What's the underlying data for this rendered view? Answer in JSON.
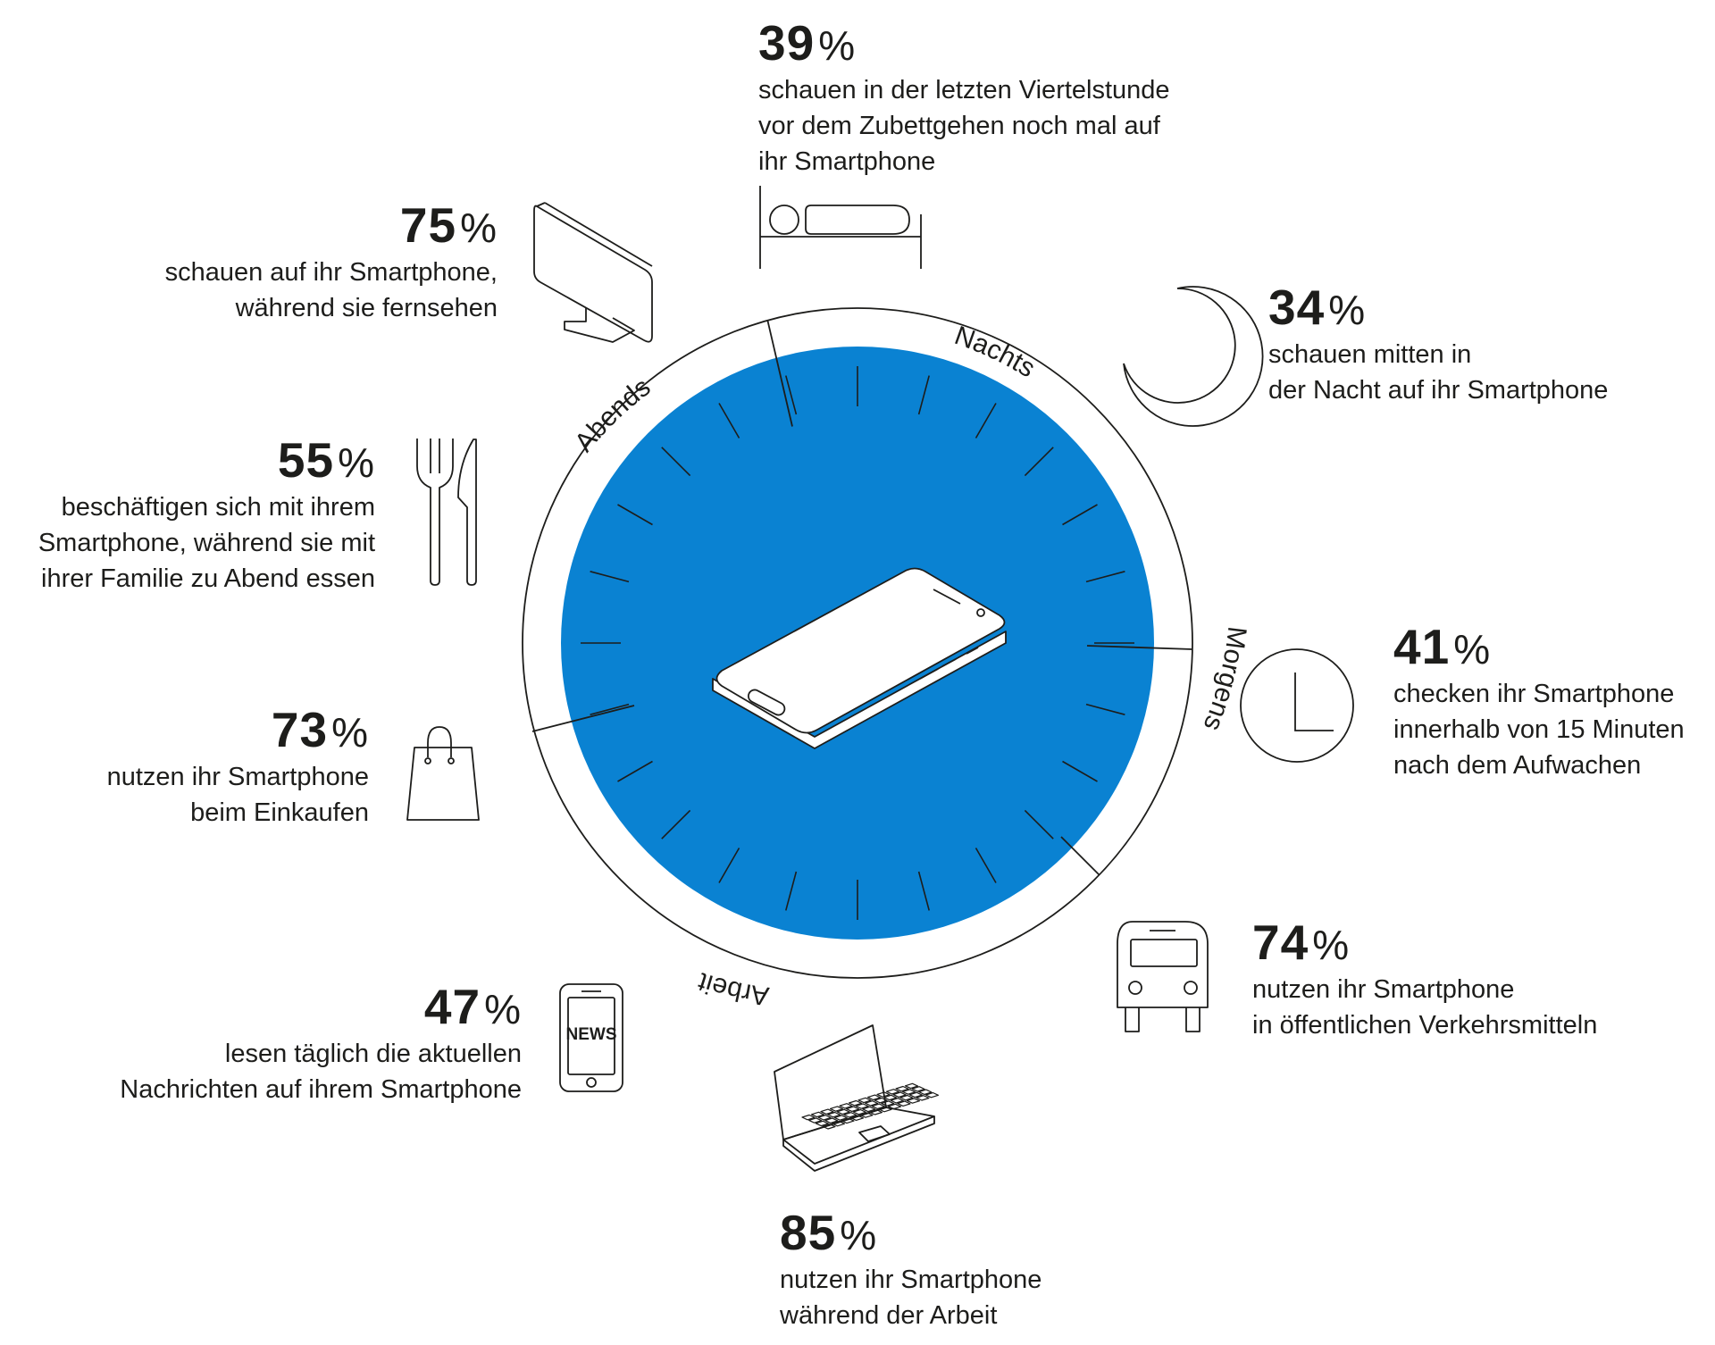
{
  "colors": {
    "dial_fill": "#0a82d2",
    "ink": "#1d1d1b",
    "background": "#ffffff"
  },
  "ring_labels": {
    "nachts": "Nachts",
    "abends": "Abends",
    "morgens": "Morgens",
    "arbeit": "Arbeit"
  },
  "stats": [
    {
      "id": "bed",
      "value": "39",
      "unit": "%",
      "text": "schauen in der letzten Viertelstunde\nvor dem Zubettgehen noch mal auf\nihr Smartphone",
      "icon": "bed-icon"
    },
    {
      "id": "tv",
      "value": "75",
      "unit": "%",
      "text": "schauen auf ihr Smartphone,\nwährend sie fernsehen",
      "icon": "tv-icon"
    },
    {
      "id": "night",
      "value": "34",
      "unit": "%",
      "text": "schauen mitten in\nder Nacht auf ihr Smartphone",
      "icon": "moon-icon"
    },
    {
      "id": "dinner",
      "value": "55",
      "unit": "%",
      "text": "beschäftigen sich mit ihrem\nSmartphone, während sie mit\nihrer Familie zu Abend essen",
      "icon": "cutlery-icon"
    },
    {
      "id": "wakeup",
      "value": "41",
      "unit": "%",
      "text": "checken ihr Smartphone\ninnerhalb von 15 Minuten\nnach dem Aufwachen",
      "icon": "clock-icon"
    },
    {
      "id": "shopping",
      "value": "73",
      "unit": "%",
      "text": "nutzen ihr Smartphone\nbeim Einkaufen",
      "icon": "shopping-bag-icon"
    },
    {
      "id": "transport",
      "value": "74",
      "unit": "%",
      "text": "nutzen ihr Smartphone\nin öffentlichen Verkehrsmitteln",
      "icon": "bus-icon"
    },
    {
      "id": "news",
      "value": "47",
      "unit": "%",
      "text": "lesen täglich die aktuellen\nNachrichten auf ihrem Smartphone",
      "icon": "news-phone-icon"
    },
    {
      "id": "work",
      "value": "85",
      "unit": "%",
      "text": "nutzen ihr Smartphone\nwährend der Arbeit",
      "icon": "laptop-icon"
    }
  ],
  "news_icon_label": "NEWS",
  "center_icon": "smartphone-icon"
}
